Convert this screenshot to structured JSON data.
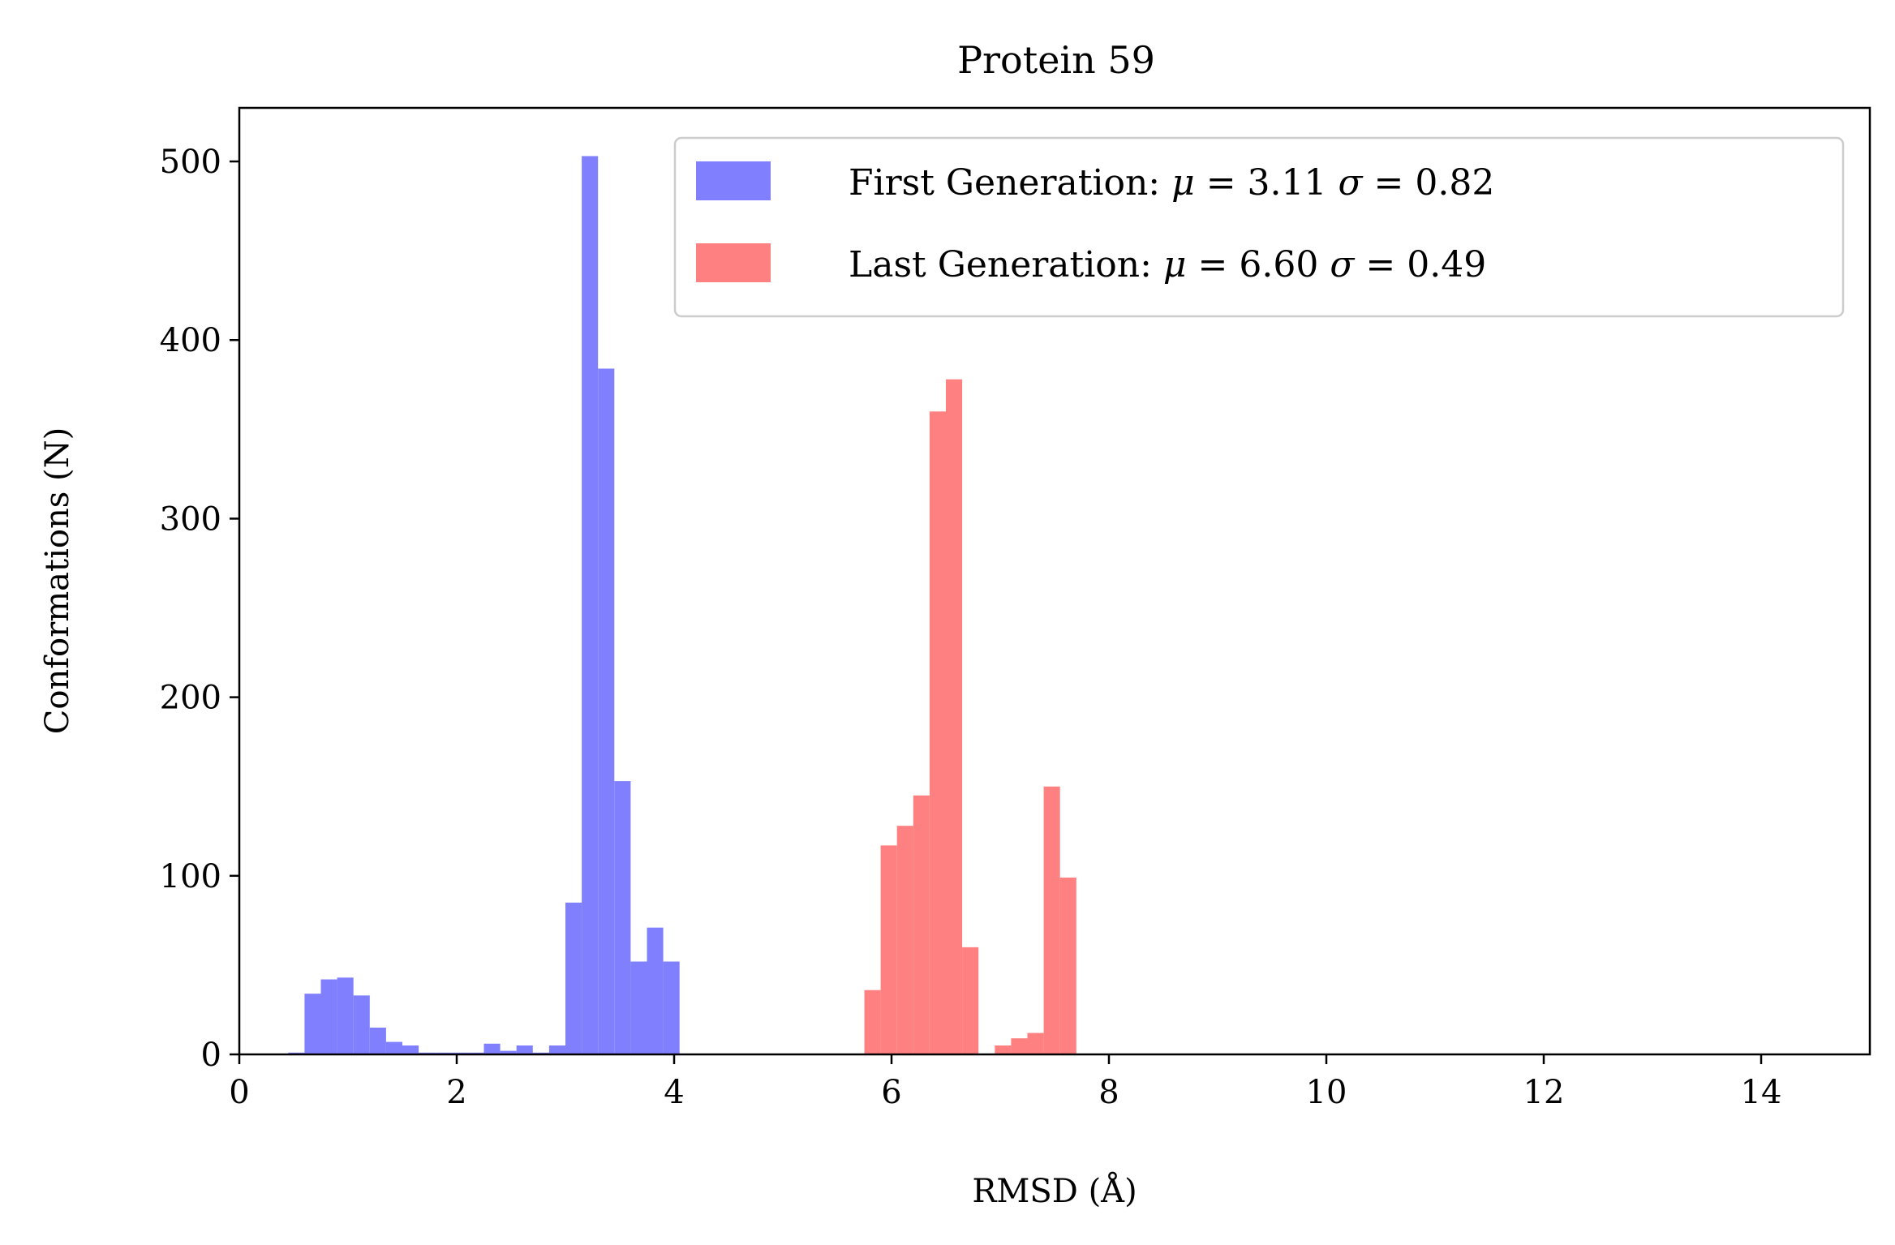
{
  "chart_data": {
    "type": "bar",
    "title": "Protein 59",
    "xlabel": "RMSD (Å)",
    "ylabel": "Conformations (N)",
    "xlim": [
      0,
      15
    ],
    "ylim": [
      0,
      530
    ],
    "x_ticks": [
      0,
      2,
      4,
      6,
      8,
      10,
      12,
      14
    ],
    "y_ticks": [
      0,
      100,
      200,
      300,
      400,
      500
    ],
    "x_tick_labels": [
      "0",
      "2",
      "4",
      "6",
      "8",
      "10",
      "12",
      "14"
    ],
    "y_tick_labels": [
      "0",
      "100",
      "200",
      "300",
      "400",
      "500"
    ],
    "grid": false,
    "legend_position": "top-right",
    "bin_width": 0.15,
    "series": [
      {
        "name": "First Generation",
        "legend_prefix": "First Generation: ",
        "mean_symbol": "μ",
        "mean_text": " = 3.11 ",
        "sd_symbol": "σ",
        "sd_text": " = 0.82",
        "color": "#8080ff",
        "bins": [
          {
            "x": 0.45,
            "count": 1
          },
          {
            "x": 0.6,
            "count": 34
          },
          {
            "x": 0.75,
            "count": 42
          },
          {
            "x": 0.9,
            "count": 43
          },
          {
            "x": 1.05,
            "count": 33
          },
          {
            "x": 1.2,
            "count": 15
          },
          {
            "x": 1.35,
            "count": 7
          },
          {
            "x": 1.5,
            "count": 5
          },
          {
            "x": 1.65,
            "count": 1
          },
          {
            "x": 1.8,
            "count": 1
          },
          {
            "x": 1.95,
            "count": 1
          },
          {
            "x": 2.1,
            "count": 1
          },
          {
            "x": 2.25,
            "count": 6
          },
          {
            "x": 2.4,
            "count": 2
          },
          {
            "x": 2.55,
            "count": 5
          },
          {
            "x": 2.7,
            "count": 1
          },
          {
            "x": 2.85,
            "count": 5
          },
          {
            "x": 3.0,
            "count": 85
          },
          {
            "x": 3.15,
            "count": 503
          },
          {
            "x": 3.3,
            "count": 384
          },
          {
            "x": 3.45,
            "count": 153
          },
          {
            "x": 3.6,
            "count": 52
          },
          {
            "x": 3.75,
            "count": 71
          },
          {
            "x": 3.9,
            "count": 52
          }
        ]
      },
      {
        "name": "Last Generation",
        "legend_prefix": "Last Generation: ",
        "mean_symbol": "μ",
        "mean_text": " = 6.60 ",
        "sd_symbol": "σ",
        "sd_text": " = 0.49",
        "color": "#ff8080",
        "bins": [
          {
            "x": 5.75,
            "count": 36
          },
          {
            "x": 5.9,
            "count": 117
          },
          {
            "x": 6.05,
            "count": 128
          },
          {
            "x": 6.2,
            "count": 145
          },
          {
            "x": 6.35,
            "count": 360
          },
          {
            "x": 6.5,
            "count": 378
          },
          {
            "x": 6.65,
            "count": 60
          },
          {
            "x": 6.95,
            "count": 5
          },
          {
            "x": 7.1,
            "count": 9
          },
          {
            "x": 7.25,
            "count": 12
          },
          {
            "x": 7.4,
            "count": 150
          },
          {
            "x": 7.55,
            "count": 99
          }
        ]
      }
    ]
  }
}
